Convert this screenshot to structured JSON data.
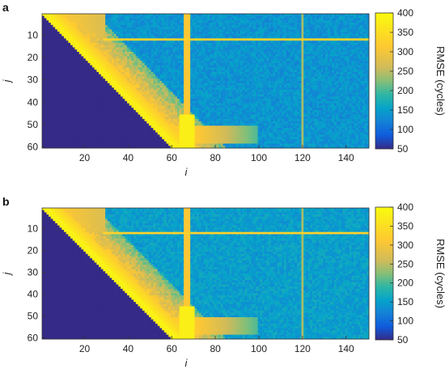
{
  "chart_data": [
    {
      "type": "heatmap",
      "panel_label": "a",
      "xlabel": "i",
      "ylabel": "j",
      "xlim": [
        1,
        150
      ],
      "ylim": [
        1,
        60
      ],
      "y_inverted": true,
      "xticks": [
        20,
        40,
        60,
        80,
        100,
        120,
        140
      ],
      "yticks": [
        10,
        20,
        30,
        40,
        50,
        60
      ],
      "colorbar": {
        "label": "RMSE (cycles)",
        "range": [
          50,
          400
        ],
        "ticks": [
          50,
          100,
          150,
          200,
          250,
          300,
          350,
          400
        ],
        "colormap": "parula"
      },
      "lower_triangle_value": 50,
      "features": {
        "bright_row_j": 12,
        "bright_column_i": 67,
        "faint_column_i": 120,
        "bright_bottom_rows_j": [
          53,
          56
        ],
        "background_rmse": 140,
        "diagonal_band_rmse": 360
      }
    },
    {
      "type": "heatmap",
      "panel_label": "b",
      "xlabel": "i",
      "ylabel": "j",
      "xlim": [
        1,
        150
      ],
      "ylim": [
        1,
        60
      ],
      "y_inverted": true,
      "xticks": [
        20,
        40,
        60,
        80,
        100,
        120,
        140
      ],
      "yticks": [
        10,
        20,
        30,
        40,
        50,
        60
      ],
      "colorbar": {
        "label": "RMSE (cycles)",
        "range": [
          50,
          400
        ],
        "ticks": [
          50,
          100,
          150,
          200,
          250,
          300,
          350,
          400
        ],
        "colormap": "parula"
      },
      "lower_triangle_value": 50,
      "features": {
        "bright_row_j": 12,
        "bright_column_i": 67,
        "faint_column_i": 120,
        "bright_bottom_rows_j": [
          53,
          56
        ],
        "background_rmse": 150,
        "diagonal_band_rmse": 365
      }
    }
  ]
}
